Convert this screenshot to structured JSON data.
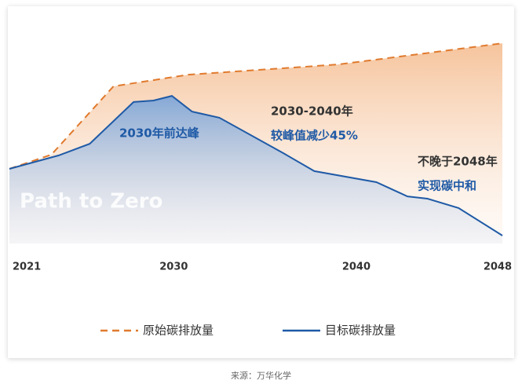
{
  "chart_data": {
    "type": "line",
    "annotations": [
      "Path to Zero",
      "2030年前达峰",
      "2030-2040年",
      "较峰值减少45%",
      "不晚于2048年",
      "实现碳中和"
    ],
    "source": "来源：万华化学",
    "xlim": [
      2021,
      2048
    ],
    "xticks": [
      2021,
      2030,
      2040,
      2048
    ],
    "ylim": [
      0,
      100
    ],
    "series": [
      {
        "name": "原始碳排放量",
        "color": "#e07a2e",
        "dash": true,
        "x": [
          2021,
          2023.3,
          2026.7,
          2030.8,
          2039,
          2043.7,
          2048
        ],
        "values": [
          35.2,
          41.9,
          74.1,
          79.6,
          84.4,
          89.6,
          94.4
        ]
      },
      {
        "name": "目标碳排放量",
        "color": "#1f5aa6",
        "dash": false,
        "x": [
          2021,
          2023.7,
          2025.4,
          2027.8,
          2028.9,
          2029.9,
          2031,
          2032.5,
          2036,
          2037.7,
          2041.1,
          2042.8,
          2043.9,
          2045.6,
          2048
        ],
        "values": [
          35.2,
          41.5,
          47,
          66.7,
          67.4,
          69.6,
          62.2,
          59.3,
          42.6,
          34.1,
          28.9,
          22.2,
          21.1,
          16.7,
          3.7
        ]
      }
    ]
  }
}
